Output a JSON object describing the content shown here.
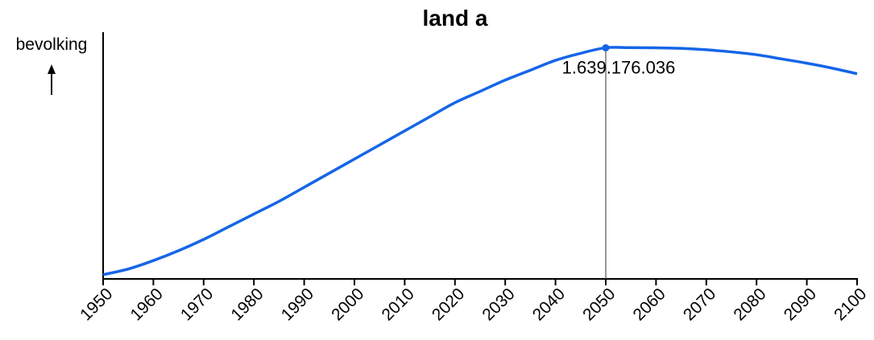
{
  "chart_data": {
    "type": "line",
    "title": "land a",
    "ylabel": "bevolking",
    "xlabel": "",
    "xlim": [
      1950,
      2100
    ],
    "ylim": [
      0,
      1750000000
    ],
    "x_ticks": [
      "1950",
      "1960",
      "1970",
      "1980",
      "1990",
      "2000",
      "2010",
      "2020",
      "2030",
      "2040",
      "2050",
      "2060",
      "2070",
      "2080",
      "2090",
      "2100"
    ],
    "y_ticks_shown": false,
    "grid": false,
    "line_color": "#1565e8",
    "series": [
      {
        "x": [
          1950,
          1955,
          1960,
          1965,
          1970,
          1975,
          1980,
          1985,
          1990,
          1995,
          2000,
          2005,
          2010,
          2015,
          2020,
          2025,
          2030,
          2035,
          2040,
          2045,
          2050,
          2055,
          2060,
          2065,
          2070,
          2075,
          2080,
          2085,
          2090,
          2095,
          2100
        ],
        "values": [
          30000000,
          70000000,
          130000000,
          200000000,
          280000000,
          370000000,
          460000000,
          550000000,
          650000000,
          750000000,
          850000000,
          950000000,
          1050000000,
          1150000000,
          1250000000,
          1330000000,
          1410000000,
          1480000000,
          1550000000,
          1600000000,
          1639176036,
          1640000000,
          1639000000,
          1635000000,
          1625000000,
          1610000000,
          1590000000,
          1560000000,
          1530000000,
          1495000000,
          1455000000
        ]
      }
    ],
    "highlight": {
      "x": 2050,
      "y": 1639176036,
      "label": "1.639.176.036"
    }
  }
}
